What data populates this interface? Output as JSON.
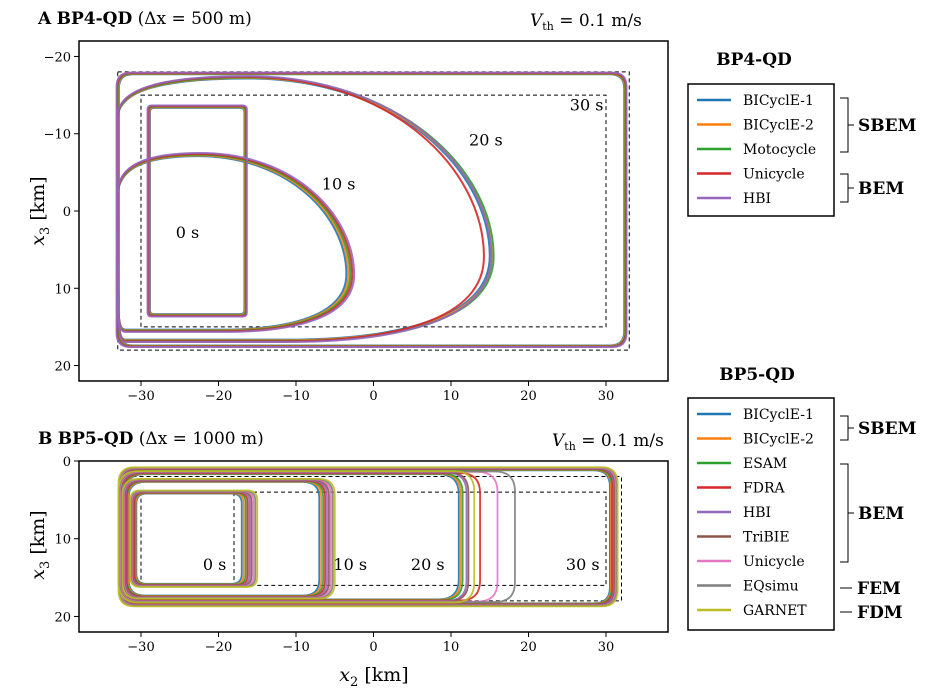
{
  "panel_a": {
    "letter": "A",
    "name": "BP4-QD",
    "resolution": "(Δx = 500 m)",
    "vth_sym": "V",
    "vth_sub": "th",
    "vth_val": " = 0.1 m/s",
    "ylabel_sym": "x",
    "ylabel_sub": "3",
    "ylabel_unit": " [km]",
    "time_labels": [
      "0 s",
      "10 s",
      "20 s",
      "30 s"
    ]
  },
  "panel_b": {
    "letter": "B",
    "name": "BP5-QD",
    "resolution": "(Δx = 1000 m)",
    "vth_sym": "V",
    "vth_sub": "th",
    "vth_val": " = 0.1 m/s",
    "ylabel_sym": "x",
    "ylabel_sub": "3",
    "ylabel_unit": " [km]",
    "xlabel_sym": "x",
    "xlabel_sub": "2",
    "xlabel_unit": " [km]",
    "time_labels": [
      "0 s",
      "10 s",
      "20 s",
      "30 s"
    ]
  },
  "legend_a": {
    "title": "BP4-QD",
    "entries": [
      {
        "label": "BICyclE-1",
        "color": "#1f77b4"
      },
      {
        "label": "BICyclE-2",
        "color": "#ff7f0e"
      },
      {
        "label": "Motocycle",
        "color": "#2ca02c"
      },
      {
        "label": "Unicycle",
        "color": "#d62728"
      },
      {
        "label": "HBI",
        "color": "#9467bd"
      }
    ],
    "groups": [
      "SBEM",
      "BEM"
    ]
  },
  "legend_b": {
    "title": "BP5-QD",
    "entries": [
      {
        "label": "BICyclE-1",
        "color": "#1f77b4"
      },
      {
        "label": "BICyclE-2",
        "color": "#ff7f0e"
      },
      {
        "label": "ESAM",
        "color": "#2ca02c"
      },
      {
        "label": "FDRA",
        "color": "#d62728"
      },
      {
        "label": "HBI",
        "color": "#9467bd"
      },
      {
        "label": "TriBIE",
        "color": "#8c564b"
      },
      {
        "label": "Unicycle",
        "color": "#e377c2"
      },
      {
        "label": "EQsimu",
        "color": "#7f7f7f"
      },
      {
        "label": "GARNET",
        "color": "#bcbd22"
      }
    ],
    "groups": [
      "SBEM",
      "BEM",
      "FEM",
      "FDM"
    ]
  },
  "chart_data": [
    {
      "type": "line",
      "title": "BP4-QD (Δx = 500 m)",
      "xlabel": "x2 [km]",
      "ylabel": "x3 [km]",
      "xlim": [
        -38,
        38
      ],
      "ylim": [
        22,
        -22
      ],
      "xticks": [
        -30,
        -20,
        -10,
        0,
        10,
        20,
        30
      ],
      "yticks": [
        -20,
        -10,
        0,
        10,
        20
      ],
      "annotation": "Vth = 0.1 m/s",
      "rupture_front_times_s": [
        0,
        10,
        20,
        30
      ],
      "dashed_boxes": [
        {
          "x2": [
            -33,
            33
          ],
          "x3": [
            -18,
            18
          ]
        },
        {
          "x2": [
            -30,
            30
          ],
          "x3": [
            -15,
            15
          ]
        }
      ],
      "series": [
        {
          "name": "BICyclE-1"
        },
        {
          "name": "BICyclE-2"
        },
        {
          "name": "Motocycle"
        },
        {
          "name": "Unicycle"
        },
        {
          "name": "HBI"
        }
      ],
      "fronts": {
        "0s": {
          "x2": [
            -29,
            -16.5
          ],
          "x3": [
            -13.5,
            13.5
          ]
        },
        "10s": {
          "x2_left": -33,
          "x2_right": -3,
          "x3_top": -7.3,
          "x3_bottom": 15.5
        },
        "20s": {
          "x2_left": -33,
          "x2_right": 15.5,
          "x3_top": -17.3,
          "x3_bottom": 16.8
        },
        "30s": {
          "x2": [
            -33,
            32.5
          ],
          "x3": [
            -17.8,
            17.5
          ]
        }
      }
    },
    {
      "type": "line",
      "title": "BP5-QD (Δx = 1000 m)",
      "xlabel": "x2 [km]",
      "ylabel": "x3 [km]",
      "xlim": [
        -38,
        38
      ],
      "ylim": [
        22,
        0
      ],
      "xticks": [
        -30,
        -20,
        -10,
        0,
        10,
        20,
        30
      ],
      "yticks": [
        0,
        10,
        20
      ],
      "annotation": "Vth = 0.1 m/s",
      "rupture_front_times_s": [
        0,
        10,
        20,
        30
      ],
      "dashed_boxes": [
        {
          "x2": [
            -32,
            32
          ],
          "x3": [
            2,
            18
          ]
        },
        {
          "x2": [
            -30,
            30
          ],
          "x3": [
            4,
            16
          ]
        },
        {
          "x2": [
            -18,
            -18
          ],
          "x3": [
            4,
            16
          ]
        }
      ],
      "series": [
        {
          "name": "BICyclE-1"
        },
        {
          "name": "BICyclE-2"
        },
        {
          "name": "ESAM"
        },
        {
          "name": "FDRA"
        },
        {
          "name": "HBI"
        },
        {
          "name": "TriBIE"
        },
        {
          "name": "Unicycle"
        },
        {
          "name": "EQsimu"
        },
        {
          "name": "GARNET"
        }
      ],
      "fronts": {
        "0s": {
          "x2_left": -31,
          "x2_right": -16,
          "x3": [
            4,
            16
          ]
        },
        "10s": {
          "x2_left": -32,
          "x2_right": -6,
          "x3": [
            2.5,
            17.5
          ]
        },
        "20s": {
          "x2_left": -32.5,
          "x2_right": 12,
          "x3": [
            1.5,
            18
          ]
        },
        "30s": {
          "x2": [
            -32.5,
            31
          ],
          "x3": [
            1,
            18.5
          ]
        }
      }
    }
  ]
}
